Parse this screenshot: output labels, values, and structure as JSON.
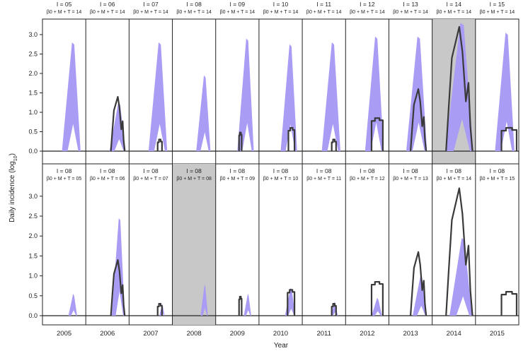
{
  "chart_data": {
    "type": "area",
    "ylabel_main": "Daily incidence (log",
    "ylabel_sub": "10",
    "ylabel_end": ")",
    "xlabel": "Year",
    "ylim": [
      0,
      3.4
    ],
    "yticks": [
      "0.0",
      "0.5",
      "1.0",
      "1.5",
      "2.0",
      "2.5",
      "3.0"
    ],
    "ytick_values": [
      0,
      0.5,
      1.0,
      1.5,
      2.0,
      2.5,
      3.0
    ],
    "years": [
      "2005",
      "2006",
      "2007",
      "2008",
      "2009",
      "2010",
      "2011",
      "2012",
      "2013",
      "2014",
      "2015"
    ],
    "colors": {
      "model_band": "#a99cf4",
      "observed": "#3a3a3a",
      "highlight": "#c8c8c8"
    },
    "rows": [
      {
        "highlight_index": 9,
        "panels": [
          {
            "title": "I = 05",
            "subtitle": "β0 + M + T = 14",
            "band": {
              "start": 0.45,
              "end": 0.88,
              "peak": 2.8
            },
            "observed": null
          },
          {
            "title": "I = 06",
            "subtitle": "β0 + M + T = 14",
            "band": {
              "start": 0.55,
              "end": 0.92,
              "peak": 1.25
            },
            "observed": {
              "start": 0.58,
              "end": 0.9,
              "peak": 1.4
            }
          },
          {
            "title": "I = 07",
            "subtitle": "β0 + M + T = 14",
            "band": {
              "start": 0.45,
              "end": 0.88,
              "peak": 2.8
            },
            "observed": {
              "start": 0.66,
              "end": 0.76,
              "peak": 0.3
            }
          },
          {
            "title": "I = 08",
            "subtitle": "β0 + M + T = 14",
            "band": {
              "start": 0.55,
              "end": 0.88,
              "peak": 1.95
            },
            "observed": null
          },
          {
            "title": "I = 09",
            "subtitle": "β0 + M + T = 14",
            "band": {
              "start": 0.5,
              "end": 0.88,
              "peak": 2.9
            },
            "observed": {
              "start": 0.54,
              "end": 0.6,
              "peak": 0.48
            }
          },
          {
            "title": "I = 10",
            "subtitle": "β0 + M + T = 14",
            "band": {
              "start": 0.5,
              "end": 0.88,
              "peak": 2.75
            },
            "observed": {
              "start": 0.68,
              "end": 0.82,
              "peak": 0.6
            }
          },
          {
            "title": "I = 11",
            "subtitle": "β0 + M + T = 14",
            "band": {
              "start": 0.45,
              "end": 0.88,
              "peak": 2.8
            },
            "observed": {
              "start": 0.68,
              "end": 0.78,
              "peak": 0.3
            }
          },
          {
            "title": "I = 12",
            "subtitle": "β0 + M + T = 14",
            "band": {
              "start": 0.45,
              "end": 0.88,
              "peak": 2.95
            },
            "observed": {
              "start": 0.6,
              "end": 0.86,
              "peak": 0.85
            }
          },
          {
            "title": "I = 13",
            "subtitle": "β0 + M + T = 14",
            "band": {
              "start": 0.4,
              "end": 0.88,
              "peak": 2.95
            },
            "observed": {
              "start": 0.5,
              "end": 0.86,
              "peak": 1.6
            }
          },
          {
            "title": "I = 14",
            "subtitle": "β0 + M + T = 14",
            "band": {
              "start": 0.3,
              "end": 0.95,
              "peak": 3.3
            },
            "observed": {
              "start": 0.32,
              "end": 0.93,
              "peak": 3.2
            }
          },
          {
            "title": "I = 15",
            "subtitle": "β0 + M + T = 14",
            "band": {
              "start": 0.45,
              "end": 0.9,
              "peak": 3.05
            },
            "observed": {
              "start": 0.6,
              "end": 0.95,
              "peak": 0.6
            }
          }
        ]
      },
      {
        "highlight_index": 3,
        "panels": [
          {
            "title": "I = 08",
            "subtitle": "β0 + M + T = 05",
            "band": {
              "start": 0.6,
              "end": 0.8,
              "peak": 0.55
            },
            "observed": null
          },
          {
            "title": "I = 08",
            "subtitle": "β0 + M + T = 06",
            "band": {
              "start": 0.6,
              "end": 0.9,
              "peak": 2.45
            },
            "observed": {
              "start": 0.58,
              "end": 0.9,
              "peak": 1.4
            }
          },
          {
            "title": "I = 08",
            "subtitle": "β0 + M + T = 07",
            "band": {
              "start": 0.7,
              "end": 0.82,
              "peak": 0.3
            },
            "observed": {
              "start": 0.66,
              "end": 0.76,
              "peak": 0.3
            }
          },
          {
            "title": "I = 08",
            "subtitle": "β0 + M + T = 08",
            "band": {
              "start": 0.65,
              "end": 0.82,
              "peak": 0.78
            },
            "observed": null
          },
          {
            "title": "I = 08",
            "subtitle": "β0 + M + T = 09",
            "band": {
              "start": 0.65,
              "end": 0.82,
              "peak": 0.55
            },
            "observed": {
              "start": 0.54,
              "end": 0.6,
              "peak": 0.48
            }
          },
          {
            "title": "I = 08",
            "subtitle": "β0 + M + T = 10",
            "band": {
              "start": 0.6,
              "end": 0.84,
              "peak": 0.7
            },
            "observed": {
              "start": 0.66,
              "end": 0.82,
              "peak": 0.65
            }
          },
          {
            "title": "I = 08",
            "subtitle": "β0 + M + T = 11",
            "band": {
              "start": 0.66,
              "end": 0.82,
              "peak": 0.35
            },
            "observed": {
              "start": 0.68,
              "end": 0.78,
              "peak": 0.3
            }
          },
          {
            "title": "I = 08",
            "subtitle": "β0 + M + T = 12",
            "band": {
              "start": 0.6,
              "end": 0.84,
              "peak": 0.45
            },
            "observed": {
              "start": 0.6,
              "end": 0.86,
              "peak": 0.85
            }
          },
          {
            "title": "I = 08",
            "subtitle": "β0 + M + T = 13",
            "band": {
              "start": 0.55,
              "end": 0.88,
              "peak": 1.0
            },
            "observed": {
              "start": 0.5,
              "end": 0.86,
              "peak": 1.6
            }
          },
          {
            "title": "I = 08",
            "subtitle": "β0 + M + T = 14",
            "band": {
              "start": 0.4,
              "end": 0.92,
              "peak": 1.95
            },
            "observed": {
              "start": 0.32,
              "end": 0.93,
              "peak": 3.2
            }
          },
          {
            "title": "I = 08",
            "subtitle": "β0 + M + T = 15",
            "band": null,
            "observed": {
              "start": 0.6,
              "end": 0.95,
              "peak": 0.6
            }
          }
        ]
      }
    ]
  }
}
